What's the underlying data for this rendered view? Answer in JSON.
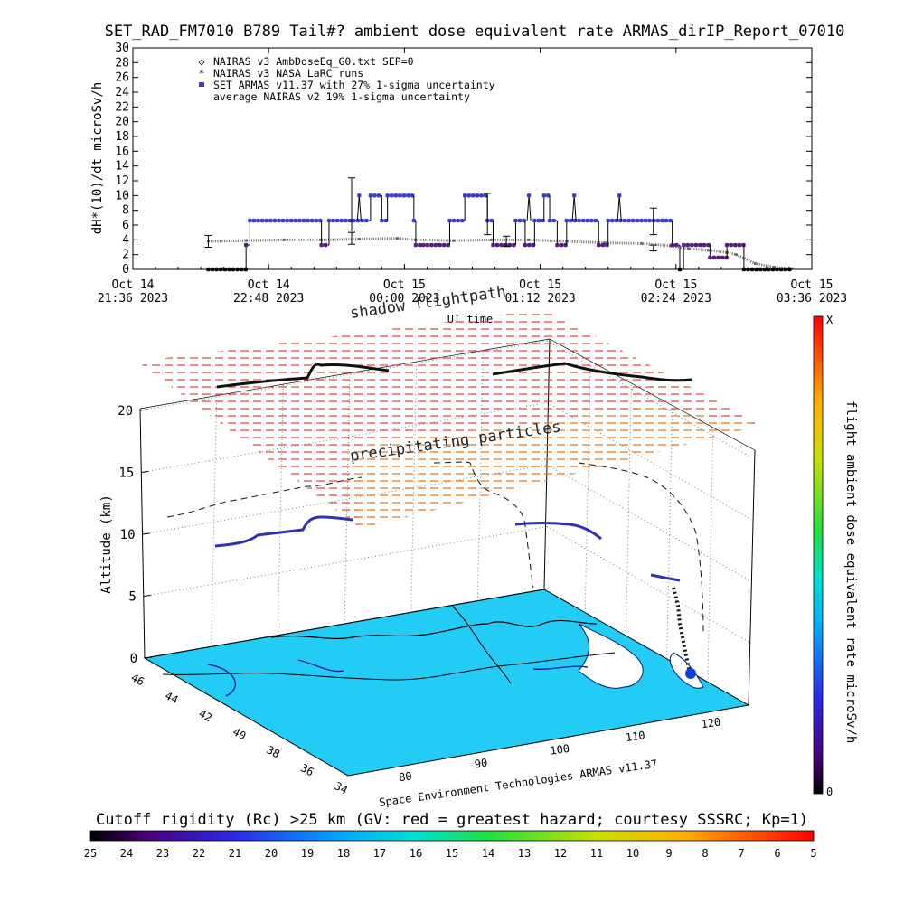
{
  "title": "SET_RAD_FM7010  B789 Tail#? ambient dose equivalent rate ARMAS_dirIP_Report_07010",
  "colors": {
    "armas": "#3c3ccf",
    "armas_low": "#5a1a86",
    "nairas": "#666666",
    "grid_red": "#d23a2a",
    "ocean": "#22ccf4",
    "land": "#ffffff"
  },
  "chart_data": [
    {
      "type": "scatter",
      "ylabel": "dH*(10)/dt microSv/h",
      "xlabel": "UT time",
      "ylim": [
        0,
        30
      ],
      "yticks": [
        0,
        2,
        4,
        6,
        8,
        10,
        12,
        14,
        16,
        18,
        20,
        22,
        24,
        26,
        28,
        30
      ],
      "x_range_min": [
        0,
        360
      ],
      "xticks": [
        {
          "line1": "Oct 14",
          "line2": "21:36 2023",
          "t": 0
        },
        {
          "line1": "Oct 14",
          "line2": "22:48 2023",
          "t": 72
        },
        {
          "line1": "Oct 15",
          "line2": "00:00 2023",
          "t": 144
        },
        {
          "line1": "Oct 15",
          "line2": "01:12 2023",
          "t": 216
        },
        {
          "line1": "Oct 15",
          "line2": "02:24 2023",
          "t": 288
        },
        {
          "line1": "Oct 15",
          "line2": "03:36 2023",
          "t": 360
        }
      ],
      "legend": [
        {
          "marker": "◇",
          "label": "NAIRAS v3 AmbDoseEq_G0.txt SEP=0"
        },
        {
          "marker": "*",
          "label": "NAIRAS v3 NASA LaRC runs"
        },
        {
          "marker": "■",
          "label": "SET ARMAS v11.37 with 27% 1-sigma uncertainty"
        },
        {
          "marker": "",
          "label": "average NAIRAS v2 19% 1-sigma uncertainty"
        }
      ],
      "armas_segments": [
        {
          "t0": 40,
          "t1": 60,
          "v": 0
        },
        {
          "t0": 60,
          "t1": 62,
          "v": 3.3
        },
        {
          "t0": 62,
          "t1": 100,
          "v": 6.6
        },
        {
          "t0": 100,
          "t1": 104,
          "v": 3.3
        },
        {
          "t0": 104,
          "t1": 126,
          "v": 6.6
        },
        {
          "t0": 126,
          "t1": 132,
          "v": 10
        },
        {
          "t0": 132,
          "t1": 135,
          "v": 6.6
        },
        {
          "t0": 135,
          "t1": 149,
          "v": 10
        },
        {
          "t0": 149,
          "t1": 150,
          "v": 6.6
        },
        {
          "t0": 150,
          "t1": 154,
          "v": 3.3
        },
        {
          "t0": 154,
          "t1": 168,
          "v": 3.3
        },
        {
          "t0": 168,
          "t1": 176,
          "v": 6.6
        },
        {
          "t0": 176,
          "t1": 188,
          "v": 10
        },
        {
          "t0": 188,
          "t1": 191,
          "v": 6.6
        },
        {
          "t0": 191,
          "t1": 203,
          "v": 3.3
        },
        {
          "t0": 203,
          "t1": 208,
          "v": 6.6
        },
        {
          "t0": 208,
          "t1": 213,
          "v": 3.3
        },
        {
          "t0": 213,
          "t1": 218,
          "v": 6.6
        },
        {
          "t0": 218,
          "t1": 221,
          "v": 10
        },
        {
          "t0": 221,
          "t1": 225,
          "v": 6.6
        },
        {
          "t0": 225,
          "t1": 230,
          "v": 3.3
        },
        {
          "t0": 230,
          "t1": 247,
          "v": 6.6
        },
        {
          "t0": 247,
          "t1": 252,
          "v": 3.3
        },
        {
          "t0": 252,
          "t1": 286,
          "v": 6.6
        },
        {
          "t0": 286,
          "t1": 290,
          "v": 3.3
        },
        {
          "t0": 290,
          "t1": 292,
          "v": 0
        },
        {
          "t0": 292,
          "t1": 306,
          "v": 3.3
        },
        {
          "t0": 306,
          "t1": 315,
          "v": 1.6
        },
        {
          "t0": 315,
          "t1": 324,
          "v": 3.3
        },
        {
          "t0": 324,
          "t1": 350,
          "v": 0
        }
      ],
      "armas_spikes": [
        {
          "t": 120,
          "v": 10
        },
        {
          "t": 210,
          "v": 10
        },
        {
          "t": 234,
          "v": 10
        },
        {
          "t": 258,
          "v": 10
        }
      ],
      "nairas_points": [
        [
          40,
          3.8
        ],
        [
          60,
          3.9
        ],
        [
          80,
          4.0
        ],
        [
          100,
          4.0
        ],
        [
          120,
          4.1
        ],
        [
          140,
          4.2
        ],
        [
          150,
          4.0
        ],
        [
          170,
          3.9
        ],
        [
          190,
          4.0
        ],
        [
          210,
          4.0
        ],
        [
          230,
          3.8
        ],
        [
          250,
          3.6
        ],
        [
          270,
          3.5
        ],
        [
          285,
          3.2
        ],
        [
          295,
          2.8
        ],
        [
          305,
          2.6
        ],
        [
          315,
          2.3
        ],
        [
          320,
          2.0
        ],
        [
          330,
          0.8
        ],
        [
          340,
          0.3
        ],
        [
          350,
          0.1
        ]
      ],
      "error_bars": [
        {
          "t": 40,
          "v": 3.8,
          "e": 0.8
        },
        {
          "t": 116,
          "v": 8.8,
          "e": 3.6
        },
        {
          "t": 116,
          "v": 4.2,
          "e": 0.8
        },
        {
          "t": 188,
          "v": 7.5,
          "e": 2.8
        },
        {
          "t": 198,
          "v": 3.8,
          "e": 0.7
        },
        {
          "t": 276,
          "v": 6.5,
          "e": 1.8
        },
        {
          "t": 276,
          "v": 2.9,
          "e": 0.4
        }
      ]
    },
    {
      "type": "3d-surface",
      "zlabel": "Altitude (km)",
      "ztick_labels": [
        "0",
        "5",
        "10",
        "15",
        "20"
      ],
      "lat_tick_labels": [
        "46",
        "44",
        "42",
        "40",
        "38",
        "36",
        "34"
      ],
      "lon_tick_labels": [
        "80",
        "90",
        "100",
        "110",
        "120"
      ],
      "annotations": {
        "shadow": "shadow flightpath",
        "precip": "precipitating particles",
        "footer": "Space Environment Technologies ARMAS v11.37"
      },
      "colorbar": {
        "label": "flight ambient dose equivalent rate microSv/h",
        "top": "X",
        "bottom": "0"
      }
    },
    {
      "type": "heatmap-legend",
      "title": "Cutoff rigidity (Rc) >25 km (GV: red = greatest hazard; courtesy SSSRC; Kp=1)",
      "ticks": [
        "25",
        "24",
        "23",
        "22",
        "21",
        "20",
        "19",
        "18",
        "17",
        "16",
        "15",
        "14",
        "13",
        "12",
        "11",
        "10",
        "9",
        "8",
        "7",
        "6",
        "5"
      ]
    }
  ]
}
